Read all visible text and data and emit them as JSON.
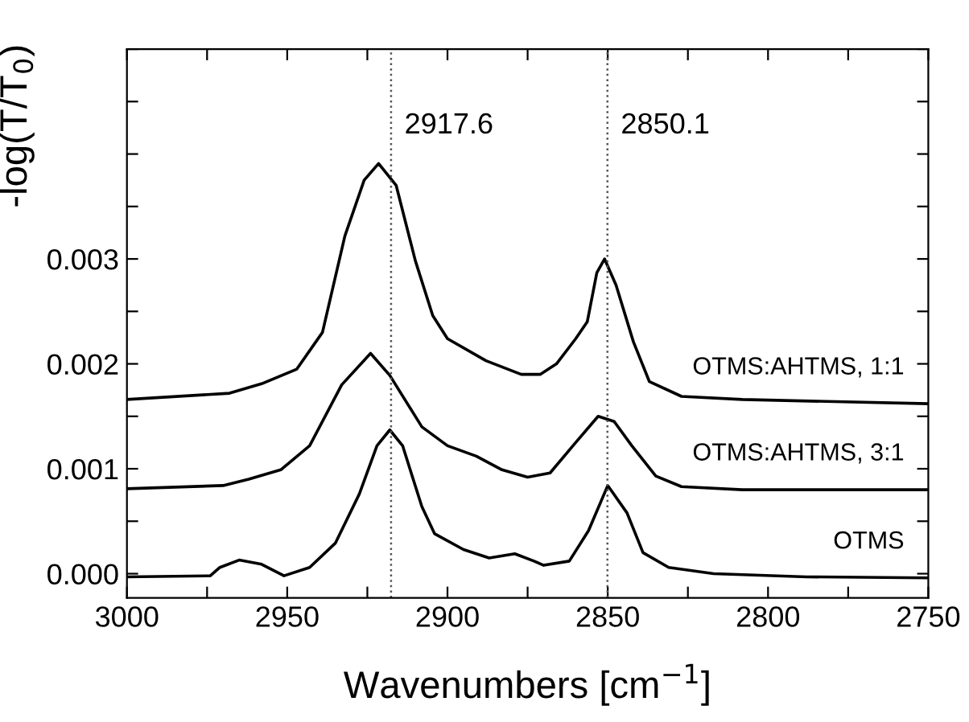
{
  "chart_data": {
    "type": "line",
    "xlabel": "Wavenumbers [cm$^{−1}$]",
    "ylabel": "-log(T/T$_{0}$)",
    "xlim": [
      3000,
      2750
    ],
    "ylim": [
      -0.00023,
      0.005
    ],
    "xticks": [
      3000,
      {
        "value": 2975,
        "label": null
      },
      2950,
      {
        "value": 2925,
        "label": null
      },
      2900,
      {
        "value": 2875,
        "label": null
      },
      2850,
      {
        "value": 2825,
        "label": null
      },
      2800,
      {
        "value": 2775,
        "label": null
      },
      2750
    ],
    "yticks": [
      {
        "value": 0,
        "label": "0.000"
      },
      {
        "value": 0.0005,
        "label": null
      },
      {
        "value": 0.001,
        "label": "0.001"
      },
      {
        "value": 0.0015,
        "label": null
      },
      {
        "value": 0.002,
        "label": "0.002"
      },
      {
        "value": 0.0025,
        "label": null
      },
      {
        "value": 0.003,
        "label": "0.003"
      },
      {
        "value": 0.0035,
        "label": null
      },
      {
        "value": 0.004,
        "label": null
      },
      {
        "value": 0.0045,
        "label": null
      },
      {
        "value": 0.005,
        "label": null
      }
    ],
    "grid": false,
    "legend": "right",
    "line_style": "solid",
    "marker": "none",
    "ref_lines": [
      {
        "axis": "x",
        "value": 2917.6,
        "label": "2917.6",
        "line_style": "dotted",
        "color": "#555555"
      },
      {
        "axis": "x",
        "value": 2850.1,
        "label": "2850.1",
        "line_style": "dotted",
        "color": "#555555"
      }
    ],
    "series": [
      {
        "name": "OTMS:AHTMS, 1:1",
        "color": "#000000",
        "x": [
          3000,
          2968,
          2958,
          2947,
          2939,
          2932,
          2926,
          2921.5,
          2916,
          2910,
          2904.6,
          2900,
          2888,
          2877,
          2871,
          2866,
          2860,
          2856.4,
          2853.4,
          2851,
          2847.4,
          2842,
          2837,
          2827,
          2808,
          2750
        ],
        "values": [
          0.00166,
          0.00172,
          0.00181,
          0.00195,
          0.0023,
          0.00322,
          0.00375,
          0.00391,
          0.0037,
          0.00298,
          0.00246,
          0.00224,
          0.00203,
          0.0019,
          0.0019,
          0.002,
          0.00224,
          0.0024,
          0.00287,
          0.003,
          0.00275,
          0.00221,
          0.00183,
          0.00169,
          0.00166,
          0.00162
        ]
      },
      {
        "name": "OTMS:AHTMS, 3:1",
        "color": "#000000",
        "x": [
          3000,
          2970,
          2962,
          2952,
          2943,
          2933,
          2924,
          2918,
          2908,
          2900,
          2891,
          2883,
          2875,
          2868,
          2860,
          2853,
          2848,
          2842.5,
          2835,
          2827,
          2808,
          2750
        ],
        "values": [
          0.00081,
          0.00084,
          0.0009,
          0.00099,
          0.00122,
          0.0018,
          0.0021,
          0.00189,
          0.0014,
          0.00122,
          0.00112,
          0.00099,
          0.00092,
          0.00096,
          0.00125,
          0.0015,
          0.00145,
          0.00122,
          0.00093,
          0.00083,
          0.0008,
          0.0008
        ]
      },
      {
        "name": "OTMS",
        "color": "#000000",
        "x": [
          3000,
          2974,
          2971,
          2965,
          2958,
          2951,
          2943,
          2935,
          2927.5,
          2922,
          2918,
          2914,
          2908,
          2904,
          2895,
          2887,
          2879,
          2873,
          2870,
          2862,
          2856,
          2850,
          2844,
          2839,
          2831,
          2817,
          2788,
          2750
        ],
        "values": [
          -3e-05,
          -2e-05,
          6e-05,
          0.00013,
          9e-05,
          -2e-05,
          6e-05,
          0.00029,
          0.00076,
          0.00122,
          0.00137,
          0.00122,
          0.00064,
          0.00038,
          0.00023,
          0.00015,
          0.00019,
          0.00012,
          8e-05,
          0.00012,
          0.00041,
          0.00084,
          0.00058,
          0.0002,
          6e-05,
          0.0,
          -3e-05,
          -4e-05
        ]
      }
    ]
  }
}
